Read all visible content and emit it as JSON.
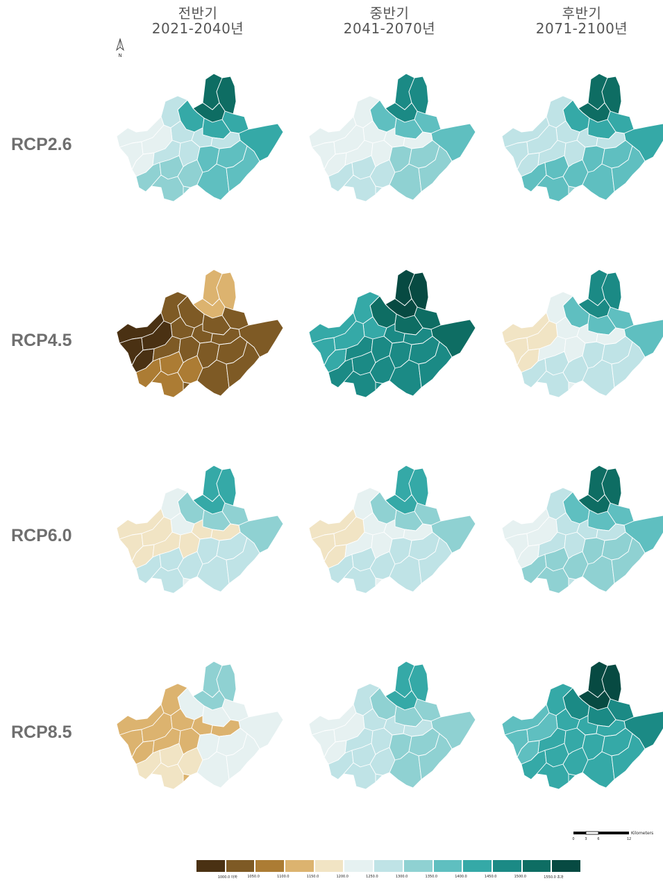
{
  "columns": [
    {
      "period": "전반기",
      "years": "2021-2040년"
    },
    {
      "period": "중반기",
      "years": "2041-2070년"
    },
    {
      "period": "후반기",
      "years": "2071-2100년"
    }
  ],
  "rows": [
    {
      "label": "RCP2.6",
      "maps": [
        {
          "base": 7,
          "ne": 11,
          "n": 9,
          "nw": 6,
          "w": 5,
          "c": 6,
          "s": 7,
          "se": 8
        },
        {
          "base": 6,
          "ne": 10,
          "n": 8,
          "nw": 5,
          "w": 5,
          "c": 5,
          "s": 6,
          "se": 7
        },
        {
          "base": 7,
          "ne": 11,
          "n": 9,
          "nw": 6,
          "w": 6,
          "c": 6,
          "s": 8,
          "se": 8
        }
      ]
    },
    {
      "label": "RCP4.5",
      "maps": [
        {
          "base": 1,
          "ne": 3,
          "n": 1,
          "nw": 1,
          "w": 0,
          "c": 1,
          "s": 2,
          "se": 1
        },
        {
          "base": 10,
          "ne": 12,
          "n": 11,
          "nw": 9,
          "w": 9,
          "c": 10,
          "s": 10,
          "se": 10
        },
        {
          "base": 5,
          "ne": 10,
          "n": 8,
          "nw": 5,
          "w": 4,
          "c": 5,
          "s": 6,
          "se": 6
        }
      ]
    },
    {
      "label": "RCP6.0",
      "maps": [
        {
          "base": 5,
          "ne": 9,
          "n": 7,
          "nw": 5,
          "w": 4,
          "c": 4,
          "s": 6,
          "se": 6
        },
        {
          "base": 5,
          "ne": 9,
          "n": 7,
          "nw": 5,
          "w": 4,
          "c": 5,
          "s": 6,
          "se": 6
        },
        {
          "base": 6,
          "ne": 11,
          "n": 8,
          "nw": 6,
          "w": 5,
          "c": 6,
          "s": 7,
          "se": 7
        }
      ]
    },
    {
      "label": "RCP8.5",
      "maps": [
        {
          "base": 3,
          "ne": 7,
          "n": 5,
          "nw": 3,
          "w": 3,
          "c": 3,
          "s": 4,
          "se": 5
        },
        {
          "base": 6,
          "ne": 9,
          "n": 7,
          "nw": 6,
          "w": 5,
          "c": 6,
          "s": 6,
          "se": 7
        },
        {
          "base": 9,
          "ne": 12,
          "n": 10,
          "nw": 9,
          "w": 8,
          "c": 9,
          "s": 9,
          "se": 9
        }
      ]
    }
  ],
  "legend": {
    "colors": [
      "#4a3113",
      "#7e5a25",
      "#ac7c34",
      "#dcb36f",
      "#f1e4c4",
      "#e6f1f1",
      "#bfe3e6",
      "#8fd1d2",
      "#5fbfc0",
      "#35a9a7",
      "#1b8a85",
      "#0e6d63",
      "#074a42"
    ],
    "labels": [
      "1000.0 이하",
      "1050.0",
      "1100.0",
      "1150.0",
      "1200.0",
      "1250.0",
      "1300.0",
      "1350.0",
      "1400.0",
      "1450.0",
      "1500.0",
      "1550.0 초과"
    ]
  },
  "north_arrow": {
    "letter": "N"
  },
  "scale": {
    "unit": "Kilometers",
    "ticks": [
      "0",
      "3",
      "6",
      "12"
    ]
  }
}
